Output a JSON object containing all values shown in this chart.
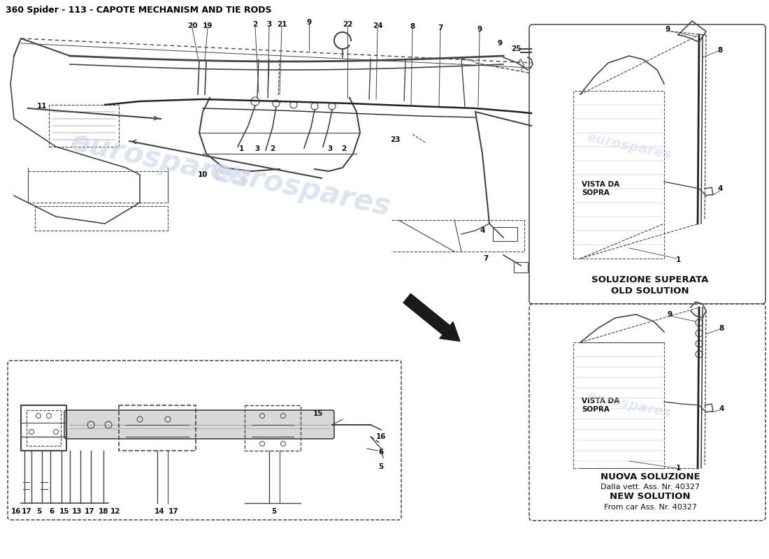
{
  "title": "360 Spider - 113 - CAPOTE MECHANISM AND TIE RODS",
  "title_fontsize": 9,
  "title_color": "#000000",
  "bg_color": "#ffffff",
  "fig_width": 11.0,
  "fig_height": 8.0,
  "old_solution_label_line1": "SOLUZIONE SUPERATA",
  "old_solution_label_line2": "OLD SOLUTION",
  "new_solution_label_line1": "NUOVA SOLUZIONE",
  "new_solution_label_line2": "Dalla vett. Ass. Nr. 40327",
  "new_solution_label_line3": "NEW SOLUTION",
  "new_solution_label_line4": "From car Ass. Nr. 40327",
  "vista_da_sopra": "VISTA DA\nSOPRA",
  "watermark_color": "#c8d4e8",
  "watermark_text": "eurospares",
  "sketch_color": "#444444",
  "light_sketch": "#888888",
  "label_fs": 7.5,
  "label_color": "#111111",
  "box_edge": "#555555",
  "box_face": "#ffffff"
}
